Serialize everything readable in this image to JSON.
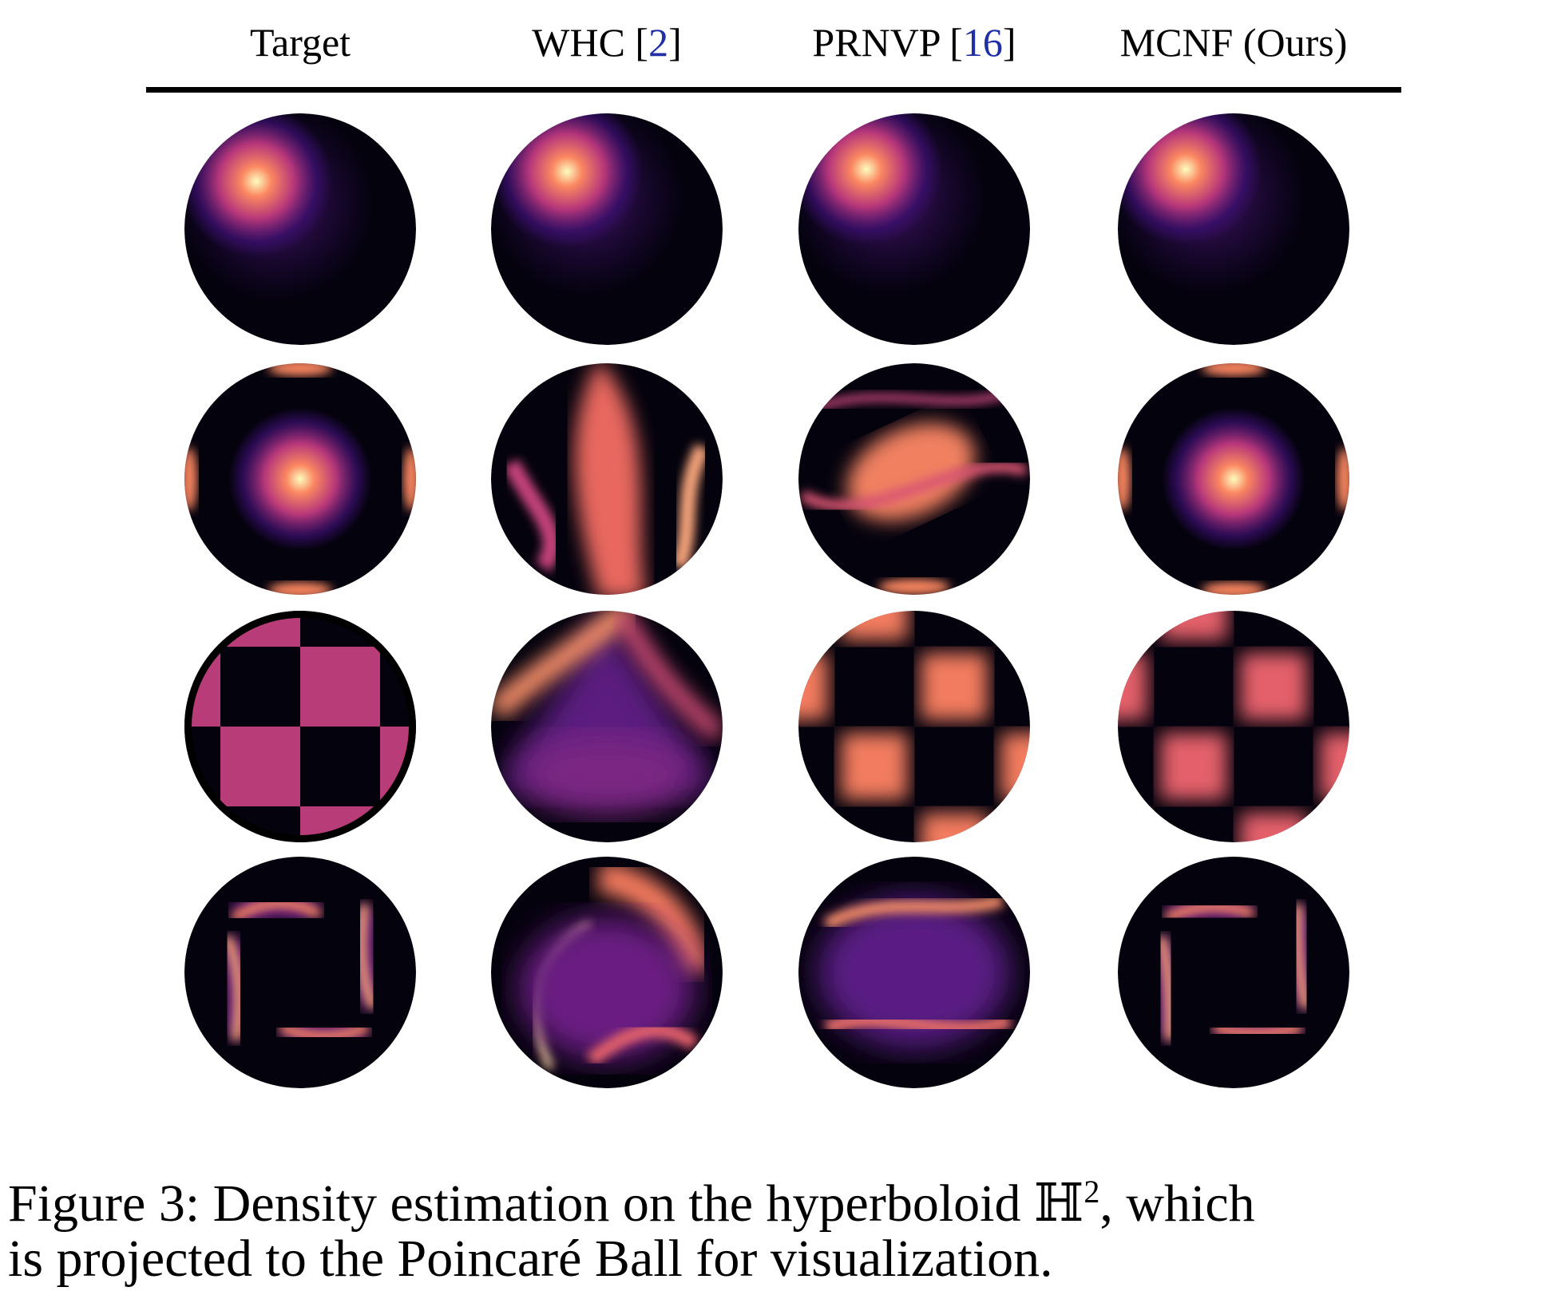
{
  "columns": [
    {
      "label": "Target",
      "ref": ""
    },
    {
      "label": "WHC",
      "ref": "2"
    },
    {
      "label": "PRNVP",
      "ref": "16"
    },
    {
      "label": "MCNF (Ours)",
      "ref": ""
    }
  ],
  "rows": [
    "gaussian",
    "multimodal",
    "checkerboard",
    "ring"
  ],
  "colors": {
    "background": "#04020d",
    "purple": "#3b0f70",
    "magenta": "#b5367a",
    "orange": "#fb8761",
    "bright": "#fcfdbf",
    "checker": "#b83c78"
  },
  "caption": {
    "line1_pre": "Figure 3: Density estimation on the hyperboloid ",
    "math": "ℍ",
    "superscript": "2",
    "line1_post": ", which",
    "line2": "is projected to the Poincaré Ball for visualization."
  }
}
